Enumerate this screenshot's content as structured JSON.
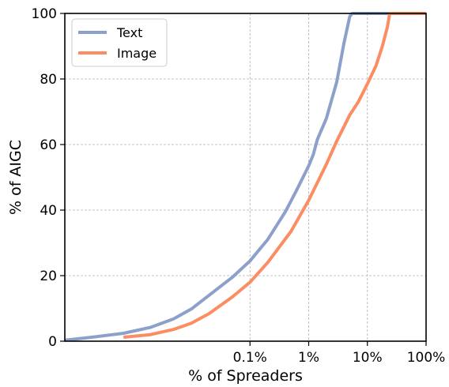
{
  "chart_data": {
    "type": "line",
    "xlabel": "% of Spreaders",
    "ylabel": "% of AIGC",
    "xscale": "log",
    "xlim": [
      7e-05,
      100
    ],
    "ylim": [
      0,
      100
    ],
    "grid": true,
    "legend_position": "top-left",
    "x_ticks": [
      {
        "value": 0.1,
        "label": "0.1%"
      },
      {
        "value": 1,
        "label": "1%"
      },
      {
        "value": 10,
        "label": "10%"
      },
      {
        "value": 100,
        "label": "100%"
      }
    ],
    "y_ticks": [
      {
        "value": 0,
        "label": "0"
      },
      {
        "value": 20,
        "label": "20"
      },
      {
        "value": 40,
        "label": "40"
      },
      {
        "value": 60,
        "label": "60"
      },
      {
        "value": 80,
        "label": "80"
      },
      {
        "value": 100,
        "label": "100"
      }
    ],
    "series": [
      {
        "name": "Text",
        "color": "#8da0cb",
        "x": [
          7e-05,
          0.0002,
          0.0007,
          0.002,
          0.005,
          0.01,
          0.02,
          0.05,
          0.1,
          0.2,
          0.4,
          0.6,
          0.8,
          1.0,
          1.2,
          1.4,
          2,
          3,
          4,
          5,
          5.5,
          100
        ],
        "y": [
          0.3,
          1.2,
          2.4,
          4.2,
          6.8,
          9.8,
          14.0,
          19.5,
          24.5,
          31,
          39.5,
          45.5,
          50,
          53.5,
          57,
          61.5,
          68,
          79,
          91,
          99,
          100,
          100
        ]
      },
      {
        "name": "Image",
        "color": "#fc8d62",
        "x": [
          0.0007,
          0.002,
          0.005,
          0.01,
          0.02,
          0.05,
          0.1,
          0.2,
          0.5,
          1,
          2,
          3,
          5,
          7,
          10,
          14,
          18,
          22,
          24,
          100
        ],
        "y": [
          1.2,
          2.0,
          3.6,
          5.5,
          8.4,
          13.5,
          18,
          24,
          33.5,
          43,
          54,
          61,
          69,
          73,
          78.5,
          84,
          90,
          96,
          100,
          100
        ]
      }
    ]
  }
}
